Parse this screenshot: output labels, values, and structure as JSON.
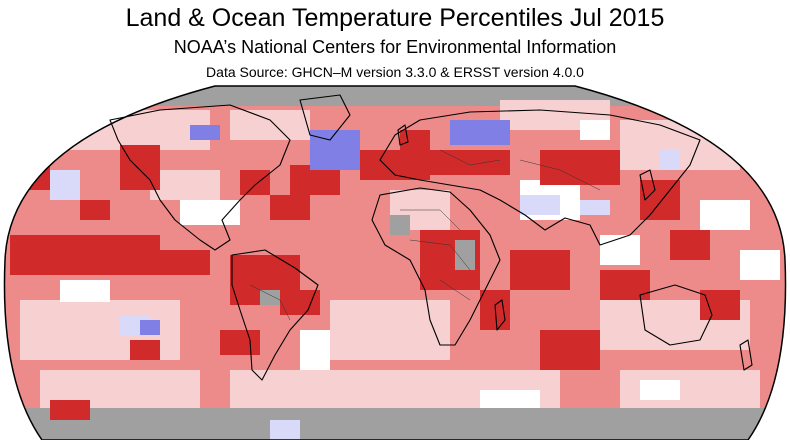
{
  "header": {
    "title": "Land & Ocean Temperature Percentiles Jul 2015",
    "subtitle": "NOAA’s National Centers for Environmental Information",
    "source": "Data Source: GHCN–M version 3.3.0 & ERSST version 4.0.0"
  },
  "map": {
    "projection": "robinson",
    "colors": {
      "no-data": "#a0a0a0",
      "much-cooler": "#7f7fe6",
      "cooler": "#d9d9fa",
      "near-average": "#ffffff",
      "warmer": "#f7d1d1",
      "much-warmer": "#ed8b8b",
      "record-warmest": "#d12a2a"
    }
  }
}
